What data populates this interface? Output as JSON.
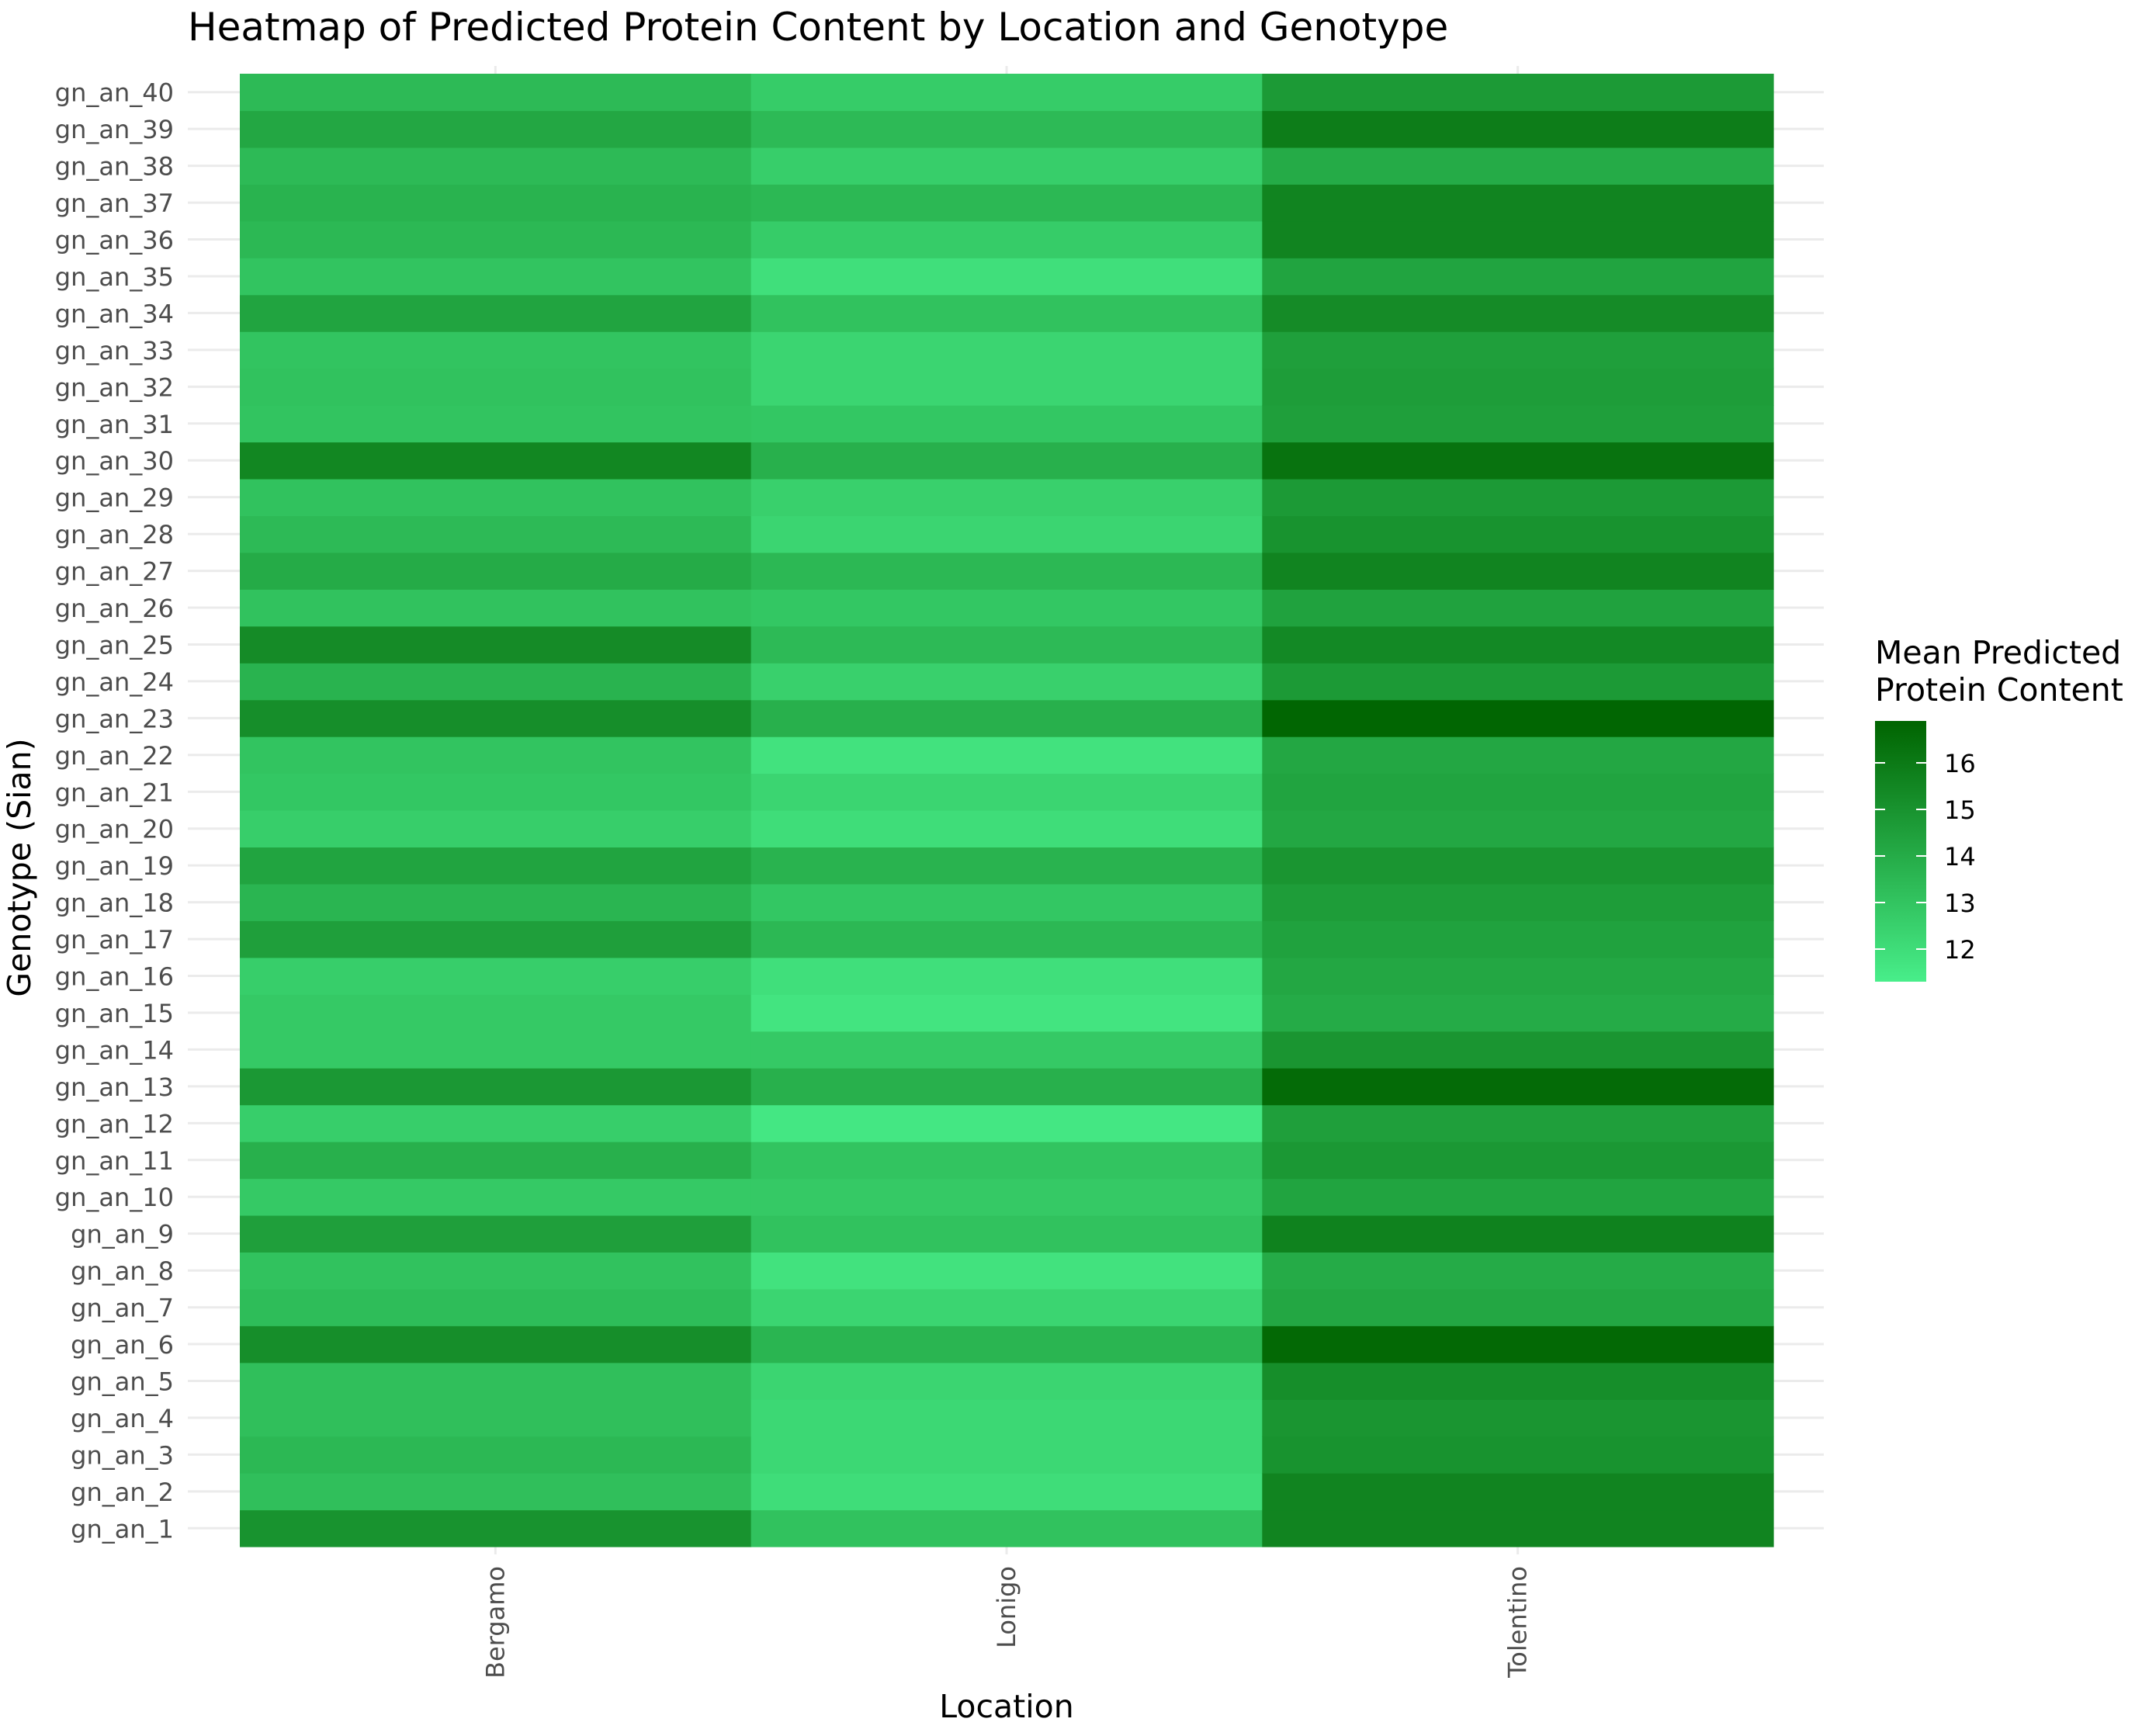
{
  "chart_data": {
    "type": "heatmap",
    "title": "Heatmap of Predicted Protein Content by Location and Genotype",
    "xlabel": "Location",
    "ylabel": "Genotype (Sian)",
    "x_categories": [
      "Bergamo",
      "Lonigo",
      "Tolentino"
    ],
    "y_categories": [
      "gn_an_1",
      "gn_an_2",
      "gn_an_3",
      "gn_an_4",
      "gn_an_5",
      "gn_an_6",
      "gn_an_7",
      "gn_an_8",
      "gn_an_9",
      "gn_an_10",
      "gn_an_11",
      "gn_an_12",
      "gn_an_13",
      "gn_an_14",
      "gn_an_15",
      "gn_an_16",
      "gn_an_17",
      "gn_an_18",
      "gn_an_19",
      "gn_an_20",
      "gn_an_21",
      "gn_an_22",
      "gn_an_23",
      "gn_an_24",
      "gn_an_25",
      "gn_an_26",
      "gn_an_27",
      "gn_an_28",
      "gn_an_29",
      "gn_an_30",
      "gn_an_31",
      "gn_an_32",
      "gn_an_33",
      "gn_an_34",
      "gn_an_35",
      "gn_an_36",
      "gn_an_37",
      "gn_an_38",
      "gn_an_39",
      "gn_an_40"
    ],
    "series": [
      {
        "name": "Bergamo",
        "values": [
          15.0,
          13.2,
          13.5,
          13.2,
          13.2,
          15.2,
          13.3,
          13.1,
          14.5,
          12.8,
          13.8,
          12.6,
          14.8,
          12.8,
          12.8,
          12.6,
          14.5,
          13.6,
          14.3,
          12.6,
          12.9,
          13.0,
          15.2,
          13.7,
          15.3,
          13.1,
          14.0,
          13.4,
          13.1,
          15.5,
          13.0,
          13.1,
          13.0,
          14.3,
          13.0,
          13.5,
          13.7,
          13.4,
          14.2,
          13.4
        ]
      },
      {
        "name": "Lonigo",
        "values": [
          13.1,
          12.0,
          12.2,
          12.2,
          12.3,
          13.6,
          12.3,
          11.8,
          13.1,
          12.8,
          13.0,
          11.6,
          13.8,
          12.8,
          11.7,
          11.9,
          13.5,
          12.9,
          13.7,
          12.0,
          12.3,
          11.8,
          13.8,
          12.5,
          13.4,
          12.9,
          13.5,
          12.3,
          12.5,
          13.8,
          12.9,
          12.3,
          12.3,
          13.1,
          11.9,
          12.7,
          13.5,
          12.6,
          13.4,
          12.7
        ]
      },
      {
        "name": "Tolentino",
        "values": [
          15.6,
          15.6,
          15.0,
          14.9,
          15.2,
          16.7,
          14.2,
          14.0,
          15.7,
          14.3,
          14.8,
          14.5,
          16.6,
          14.9,
          14.0,
          14.2,
          14.4,
          14.6,
          14.9,
          14.2,
          14.3,
          14.2,
          16.8,
          14.7,
          15.4,
          14.4,
          15.6,
          15.0,
          14.7,
          16.3,
          14.5,
          14.6,
          14.5,
          15.3,
          14.3,
          15.6,
          15.6,
          14.0,
          15.9,
          14.7
        ]
      }
    ],
    "legend": {
      "title_lines": [
        "Mean Predicted",
        "Protein Content"
      ],
      "ticks": [
        12,
        13,
        14,
        15,
        16
      ],
      "range": [
        11.3,
        16.9
      ],
      "low_color": "#48EE8A",
      "high_color": "#006400",
      "placement": "right"
    },
    "grid": true
  }
}
